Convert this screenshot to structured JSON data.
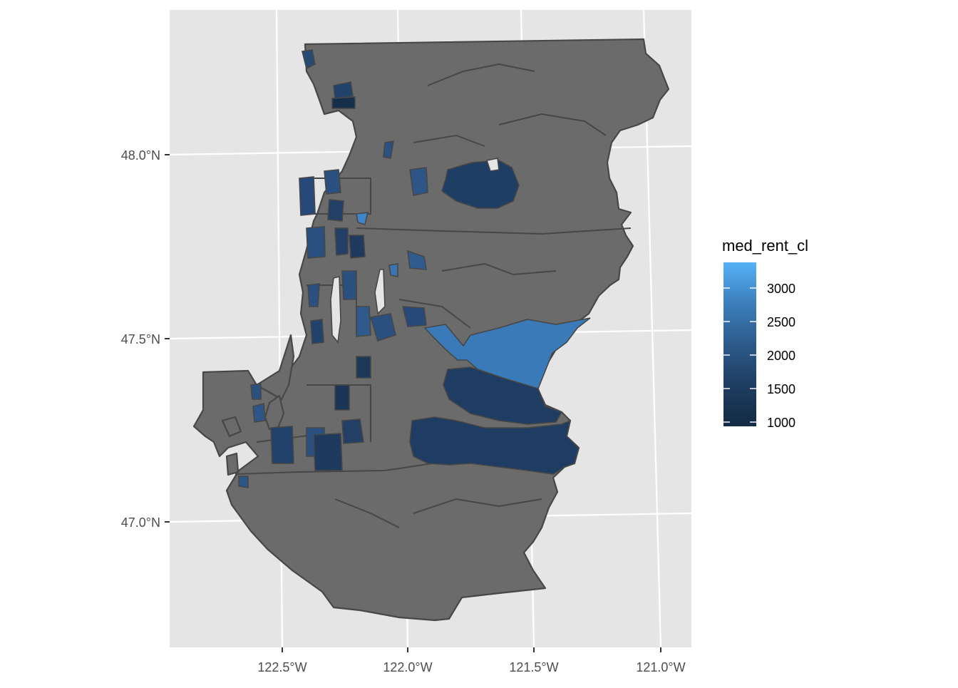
{
  "map": {
    "legend": {
      "title": "med_rent_cl",
      "labels": [
        "3000",
        "2500",
        "2000",
        "1500",
        "1000"
      ],
      "scale_low_color": "#132B43",
      "scale_high_color": "#56B1F7",
      "na_color": "#6b6b6b"
    },
    "axes": {
      "lat_labels": [
        "48.0°N",
        "47.5°N",
        "47.0°N"
      ],
      "lon_labels": [
        "122.5°W",
        "122.0°W",
        "121.5°W",
        "121.0°W"
      ]
    },
    "colors": {
      "panel_bg": "#e5e5e5",
      "grid": "#ffffff",
      "border": "#474747"
    }
  }
}
